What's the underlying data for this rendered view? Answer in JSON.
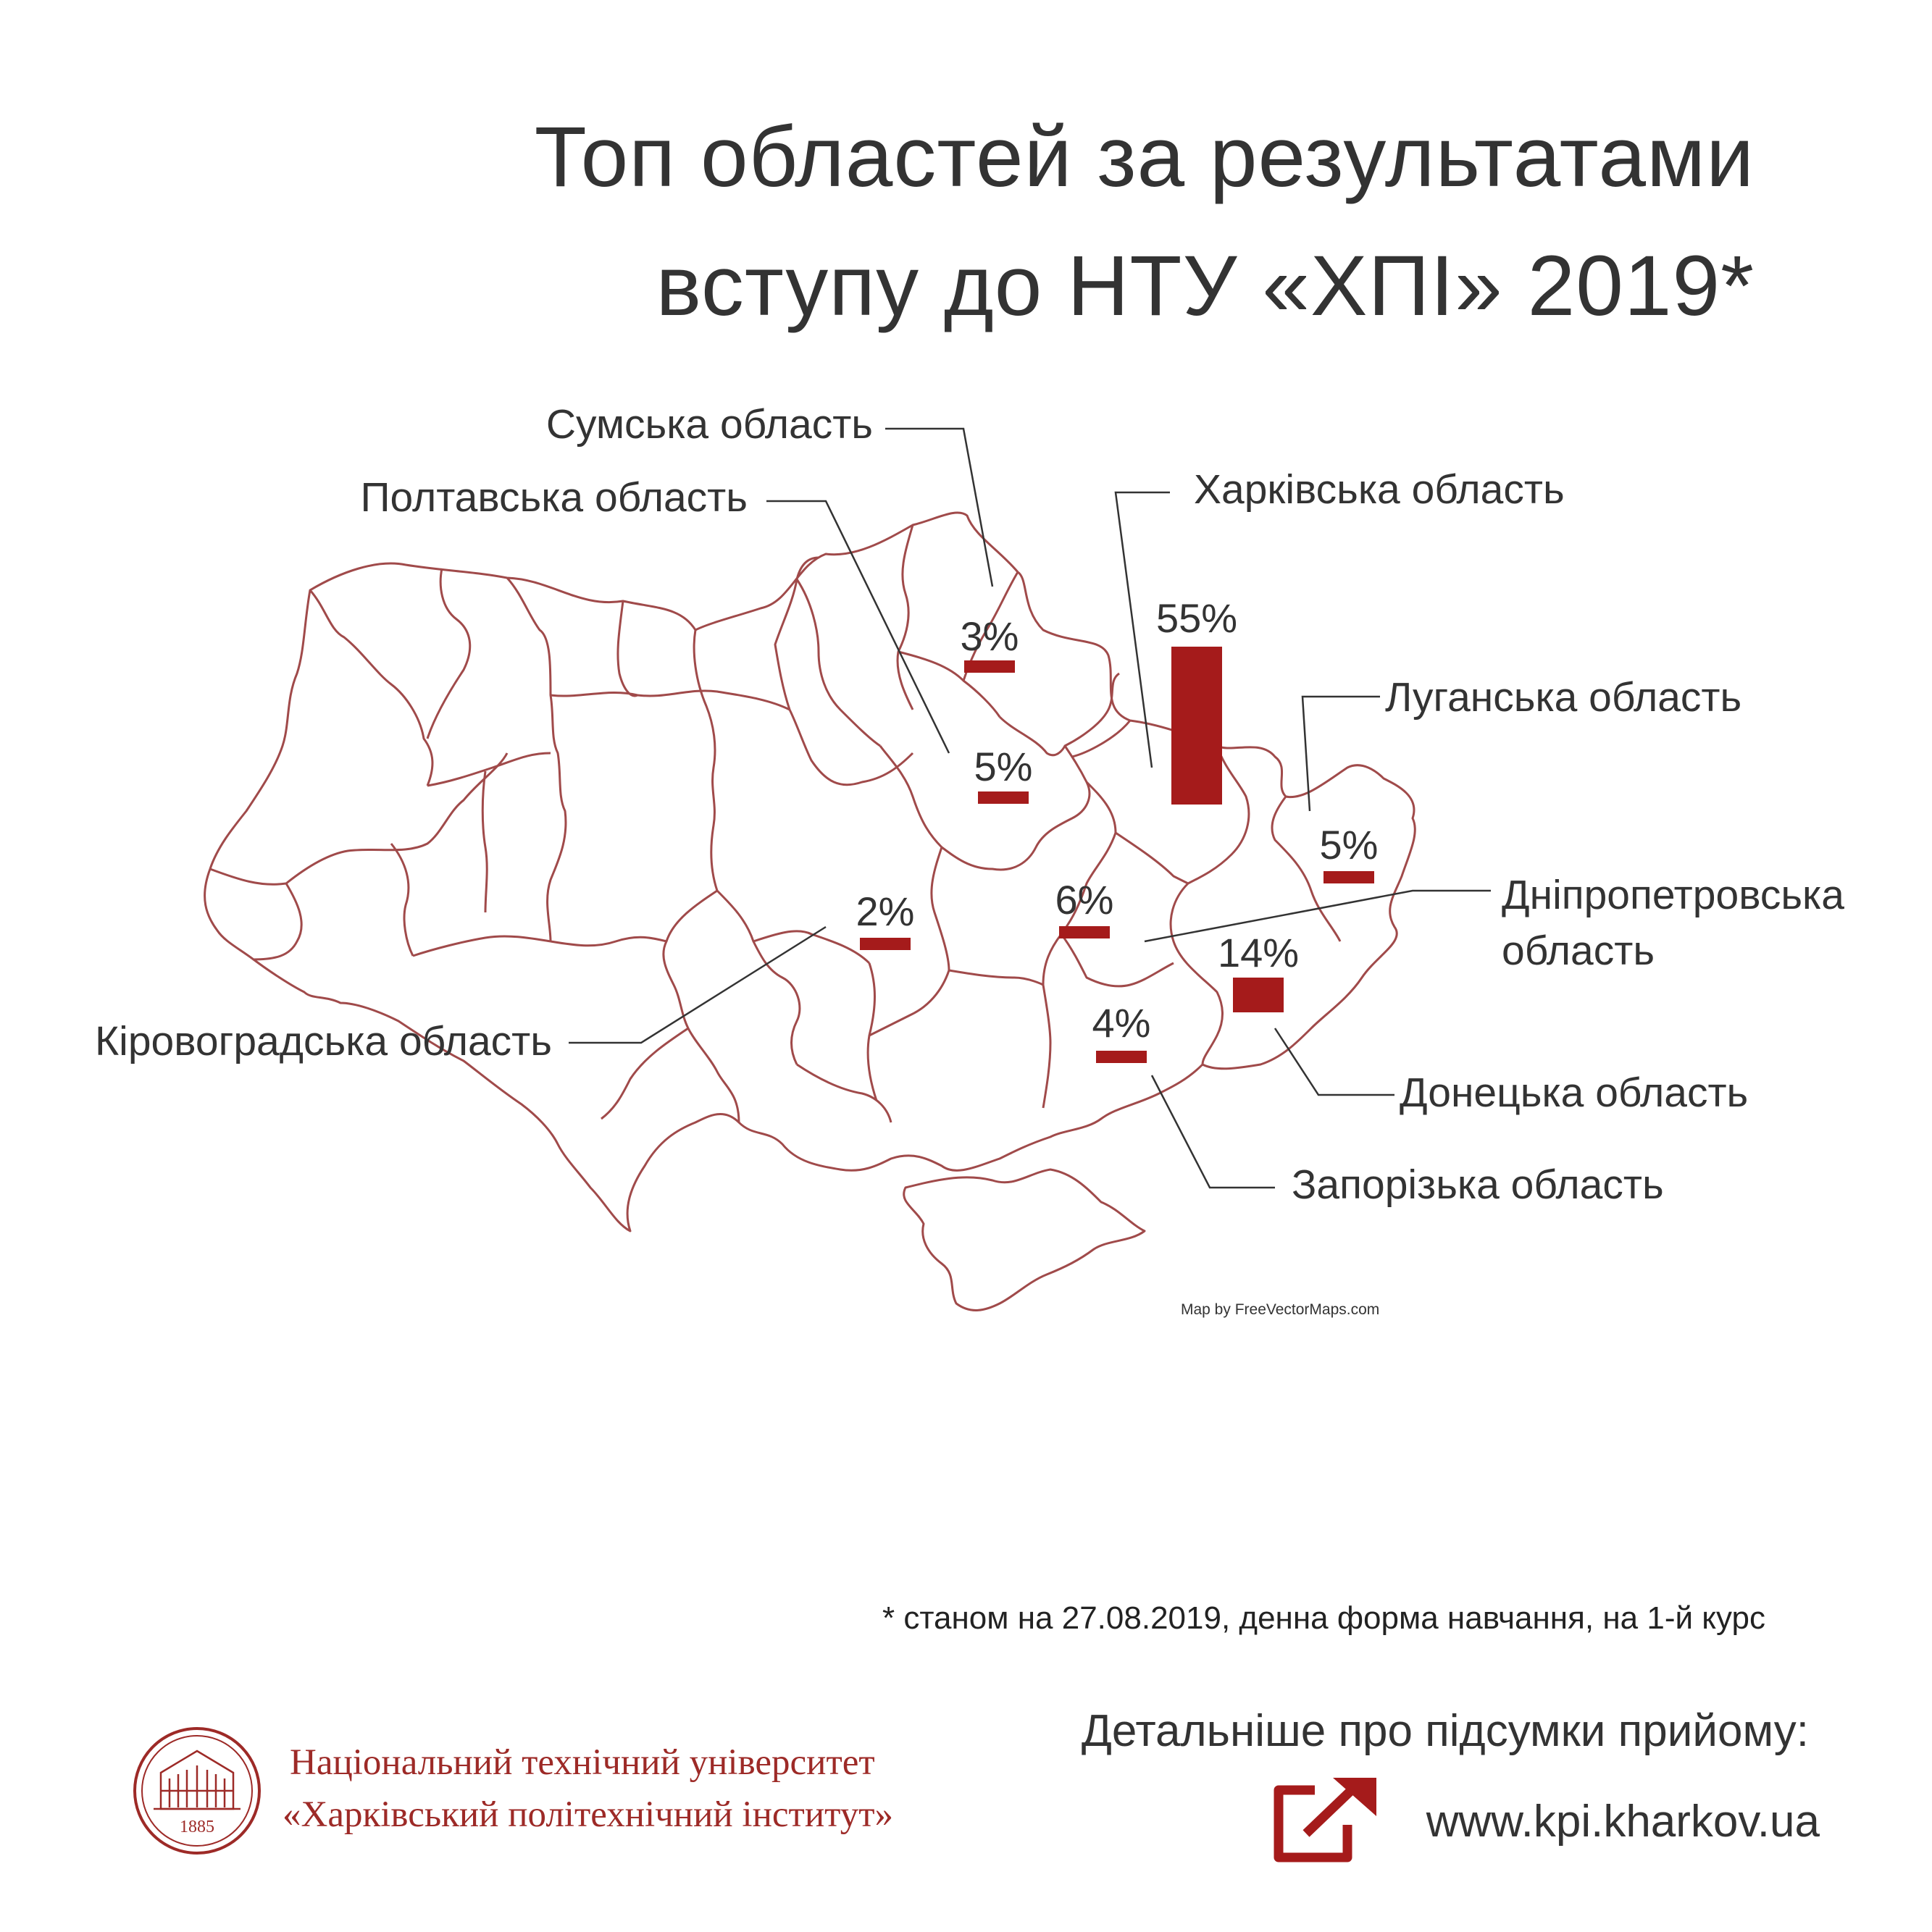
{
  "title": {
    "line1": "Топ областей за результатами",
    "line2": "вступу до НТУ «ХПІ» 2019*"
  },
  "colors": {
    "accent": "#a51b1b",
    "border": "#a04a4a",
    "text": "#333333",
    "brand": "#9d2a27"
  },
  "map_data": {
    "type": "choropleth-bars",
    "region": "Ukraine",
    "credit": "Map by FreeVectorMaps.com",
    "regions": [
      {
        "name": "Сумська область",
        "value": "3%",
        "percent": 3
      },
      {
        "name": "Полтавська область",
        "value": "5%",
        "percent": 5
      },
      {
        "name": "Харківська область",
        "value": "55%",
        "percent": 55
      },
      {
        "name": "Луганська область",
        "value": "5%",
        "percent": 5
      },
      {
        "name": "Дніпропетровська область",
        "value": "6%",
        "percent": 6
      },
      {
        "name": "Донецька область",
        "value": "14%",
        "percent": 14
      },
      {
        "name": "Запорізька область",
        "value": "4%",
        "percent": 4
      },
      {
        "name": "Кіровоградська область",
        "value": "2%",
        "percent": 2
      }
    ],
    "labels": {
      "sumy": "Сумська область",
      "poltava": "Полтавська область",
      "kharkiv": "Харківська область",
      "luhansk": "Луганська область",
      "dnipro_line1": "Дніпропетровська",
      "dnipro_line2": "область",
      "donetsk": "Донецька область",
      "zaporizhzhia": "Запорізька область",
      "kirovohrad": "Кіровоградська область"
    },
    "values": {
      "sumy": "3%",
      "poltava": "5%",
      "kharkiv": "55%",
      "luhansk": "5%",
      "dnipro": "6%",
      "donetsk": "14%",
      "zaporizhzhia": "4%",
      "kirovohrad": "2%"
    }
  },
  "footnote": "* станом на 27.08.2019, денна форма навчання, на 1-й курс",
  "footer": {
    "more_label": "Детальніше про підсумки прийому:",
    "url": "www.kpi.kharkov.ua",
    "uni_line1": "Національний технічний університет",
    "uni_line2": "«Харківський політехнічний інститут»",
    "logo_year": "1885"
  }
}
